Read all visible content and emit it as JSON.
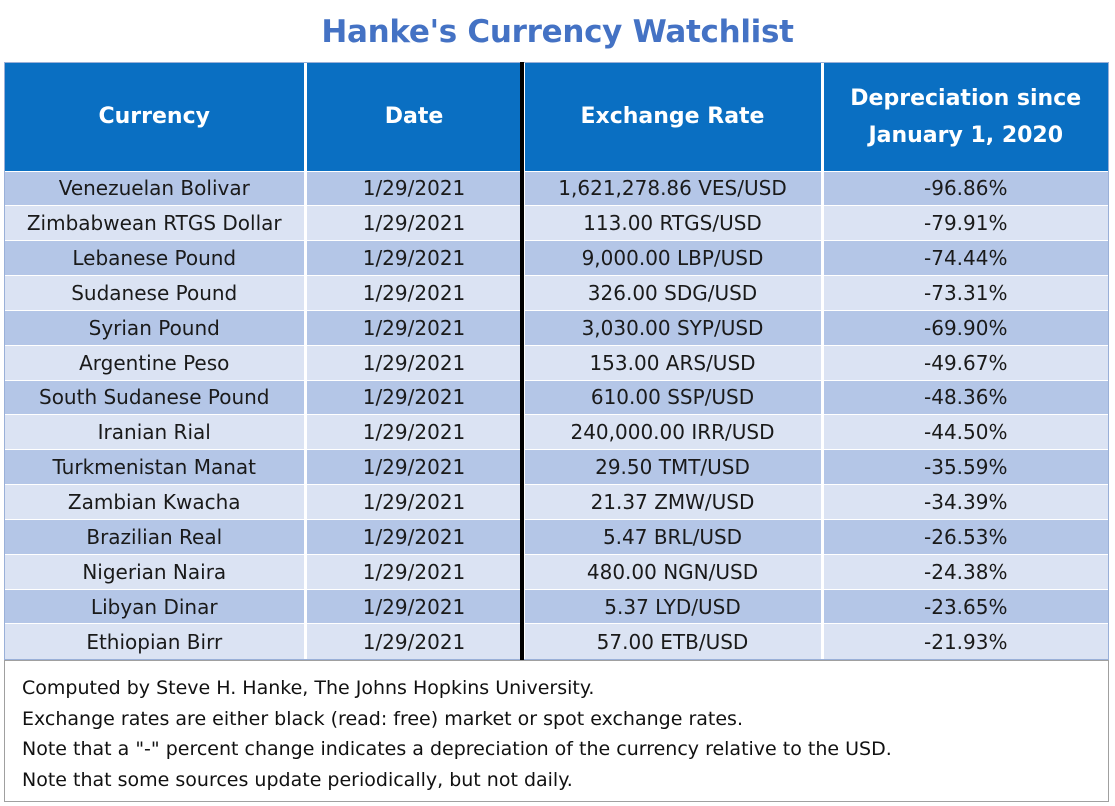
{
  "title": "Hanke's Currency Watchlist",
  "columns": [
    "Currency",
    "Date",
    "Exchange Rate",
    "Depreciation since January 1, 2020"
  ],
  "rows": [
    {
      "currency": "Venezuelan Bolivar",
      "date": "1/29/2021",
      "rate": "1,621,278.86 VES/USD",
      "depreciation": "-96.86%"
    },
    {
      "currency": "Zimbabwean RTGS Dollar",
      "date": "1/29/2021",
      "rate": "113.00 RTGS/USD",
      "depreciation": "-79.91%"
    },
    {
      "currency": "Lebanese Pound",
      "date": "1/29/2021",
      "rate": "9,000.00 LBP/USD",
      "depreciation": "-74.44%"
    },
    {
      "currency": "Sudanese Pound",
      "date": "1/29/2021",
      "rate": "326.00 SDG/USD",
      "depreciation": "-73.31%"
    },
    {
      "currency": "Syrian Pound",
      "date": "1/29/2021",
      "rate": "3,030.00 SYP/USD",
      "depreciation": "-69.90%"
    },
    {
      "currency": "Argentine Peso",
      "date": "1/29/2021",
      "rate": "153.00 ARS/USD",
      "depreciation": "-49.67%"
    },
    {
      "currency": "South Sudanese Pound",
      "date": "1/29/2021",
      "rate": "610.00 SSP/USD",
      "depreciation": "-48.36%"
    },
    {
      "currency": "Iranian Rial",
      "date": "1/29/2021",
      "rate": "240,000.00 IRR/USD",
      "depreciation": "-44.50%"
    },
    {
      "currency": "Turkmenistan Manat",
      "date": "1/29/2021",
      "rate": "29.50 TMT/USD",
      "depreciation": "-35.59%"
    },
    {
      "currency": "Zambian Kwacha",
      "date": "1/29/2021",
      "rate": "21.37 ZMW/USD",
      "depreciation": "-34.39%"
    },
    {
      "currency": "Brazilian Real",
      "date": "1/29/2021",
      "rate": "5.47 BRL/USD",
      "depreciation": "-26.53%"
    },
    {
      "currency": "Nigerian Naira",
      "date": "1/29/2021",
      "rate": "480.00 NGN/USD",
      "depreciation": "-24.38%"
    },
    {
      "currency": "Libyan Dinar",
      "date": "1/29/2021",
      "rate": "5.37 LYD/USD",
      "depreciation": "-23.65%"
    },
    {
      "currency": "Ethiopian Birr",
      "date": "1/29/2021",
      "rate": "57.00 ETB/USD",
      "depreciation": "-21.93%"
    }
  ],
  "notes": [
    "Computed by Steve H. Hanke, The Johns Hopkins University.",
    "Exchange rates are either black (read: free) market or spot exchange rates.",
    "Note that a \"-\" percent change indicates a depreciation of the currency relative to the USD.",
    "Note that some sources update periodically, but not daily."
  ],
  "colors": {
    "title": "#4472c4",
    "header_bg": "#0a6fc2",
    "row_odd": "#b4c6e7",
    "row_even": "#dbe3f3"
  }
}
